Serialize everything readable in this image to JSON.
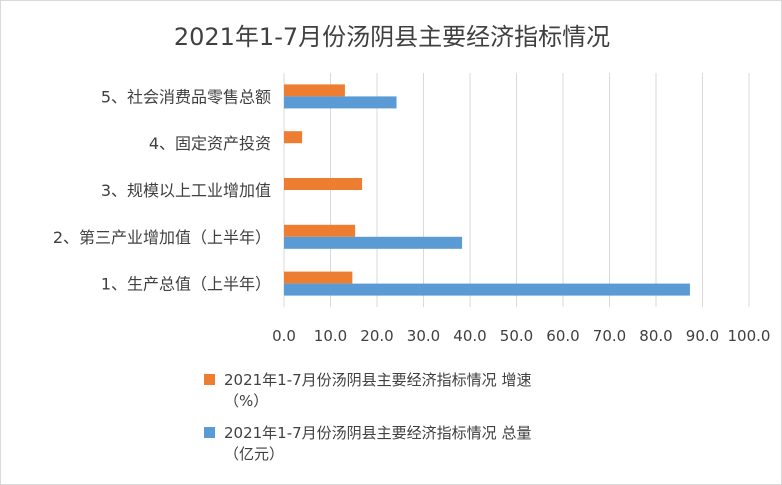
{
  "chart_data": {
    "type": "bar",
    "orientation": "horizontal",
    "title": "2021年1-7月份汤阴县主要经济指标情况",
    "categories": [
      "1、生产总值（上半年）",
      "2、第三产业增加值（上半年）",
      "3、规模以上工业增加值",
      "4、固定资产投资",
      "5、社会消费品零售总额"
    ],
    "series": [
      {
        "name": "2021年1-7月份汤阴县主要经济指标情况 增速（%）",
        "legend_lines": [
          "2021年1-7月份汤阴县主要经济指标情况 增速",
          "（%）"
        ],
        "color": "#ed7d31",
        "values": [
          14.7,
          15.3,
          16.8,
          3.9,
          13.1
        ]
      },
      {
        "name": "2021年1-7月份汤阴县主要经济指标情况 总量（亿元）",
        "legend_lines": [
          "2021年1-7月份汤阴县主要经济指标情况 总量",
          "（亿元）"
        ],
        "color": "#5b9bd5",
        "values": [
          87.3,
          38.3,
          null,
          null,
          24.2
        ]
      }
    ],
    "xlim": [
      0,
      100
    ],
    "xticks": [
      "0.0",
      "10.0",
      "20.0",
      "30.0",
      "40.0",
      "50.0",
      "60.0",
      "70.0",
      "80.0",
      "90.0",
      "100.0"
    ],
    "grid": true,
    "legend_position": "bottom"
  }
}
